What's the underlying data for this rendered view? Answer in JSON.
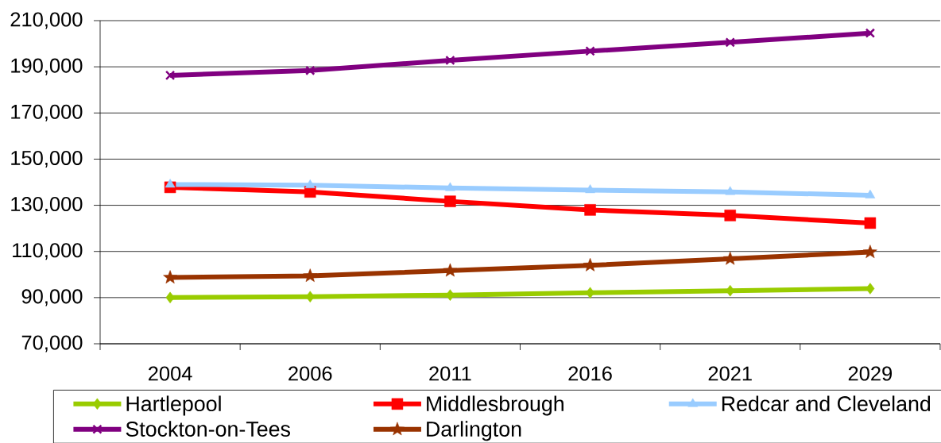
{
  "chart_data": {
    "type": "line",
    "categories": [
      "2004",
      "2006",
      "2011",
      "2016",
      "2021",
      "2029"
    ],
    "series": [
      {
        "name": "Hartlepool",
        "color": "#99cc00",
        "marker": "diamond",
        "values": [
          90000,
          90400,
          91100,
          92100,
          93000,
          93900
        ]
      },
      {
        "name": "Middlesbrough",
        "color": "#ff0000",
        "marker": "square",
        "values": [
          137800,
          135800,
          131700,
          128000,
          125600,
          122300
        ]
      },
      {
        "name": "Redcar and Cleveland",
        "color": "#99ccff",
        "marker": "triangle",
        "values": [
          139000,
          138700,
          137500,
          136600,
          135800,
          134300
        ]
      },
      {
        "name": "Stockton-on-Tees",
        "color": "#800080",
        "marker": "cross",
        "values": [
          186300,
          188400,
          192800,
          196800,
          200600,
          204600
        ]
      },
      {
        "name": "Darlington",
        "color": "#993300",
        "marker": "star",
        "values": [
          98700,
          99400,
          101700,
          104000,
          106800,
          109700
        ]
      }
    ],
    "ylim": [
      70000,
      210000
    ],
    "yticks": [
      {
        "value": 70000,
        "label": "70,000"
      },
      {
        "value": 90000,
        "label": "90,000"
      },
      {
        "value": 110000,
        "label": "110,000"
      },
      {
        "value": 130000,
        "label": "130,000"
      },
      {
        "value": 150000,
        "label": "150,000"
      },
      {
        "value": 170000,
        "label": "170,000"
      },
      {
        "value": 190000,
        "label": "190,000"
      },
      {
        "value": 210000,
        "label": "210,000"
      }
    ],
    "grid": "y",
    "legend": "bottom",
    "line_style": "solid"
  }
}
